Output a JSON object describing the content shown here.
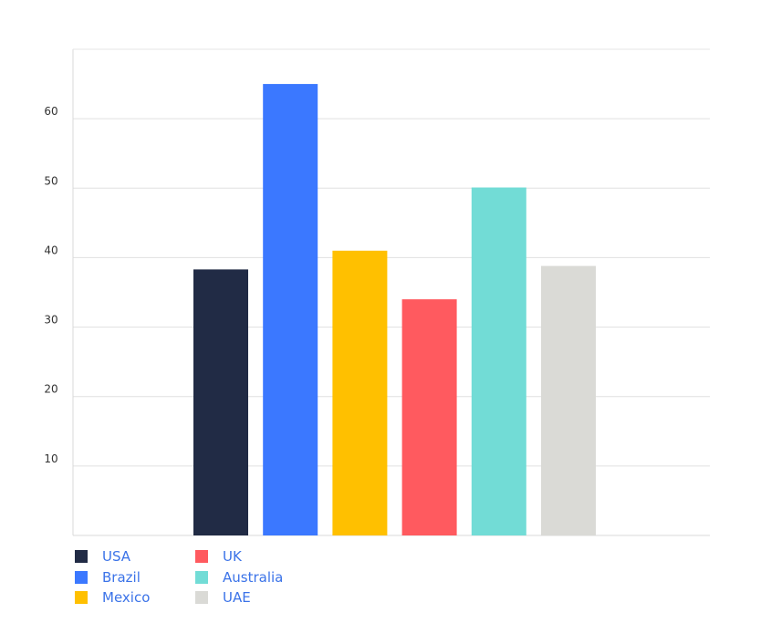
{
  "chart_data": {
    "type": "bar",
    "title": "",
    "xlabel": "",
    "ylabel": "",
    "categories": [
      "USA",
      "Brazil",
      "Mexico",
      "UK",
      "Australia",
      "UAE"
    ],
    "values": [
      38.3,
      65,
      41,
      34,
      50.1,
      38.8
    ],
    "colors": [
      "#212b45",
      "#3b78ff",
      "#ffc000",
      "#ff5a5f",
      "#72dcd6",
      "#dadad6"
    ],
    "ylim": [
      0,
      70
    ],
    "yticks": [
      10,
      20,
      30,
      40,
      50,
      60
    ],
    "grid": true,
    "legend": {
      "placement": "bottom-left",
      "columns": [
        [
          "USA",
          "Brazil",
          "Mexico"
        ],
        [
          "UK",
          "Australia",
          "UAE"
        ]
      ]
    }
  }
}
